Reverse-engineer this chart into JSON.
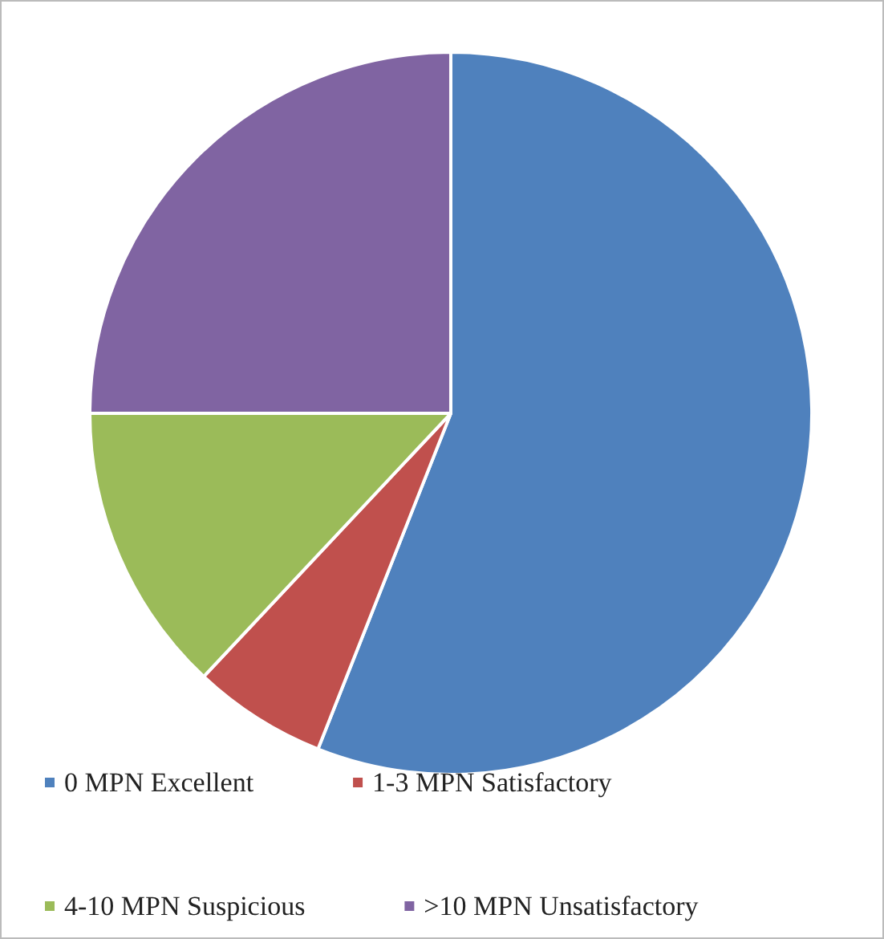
{
  "chart_data": {
    "type": "pie",
    "categories": [
      "0 MPN Excellent",
      "1-3 MPN Satisfactory",
      "4-10 MPN Suspicious",
      ">10 MPN Unsatisfactory"
    ],
    "values": [
      56,
      6,
      13,
      25
    ],
    "colors": [
      "#4f81bd",
      "#c0504d",
      "#9bbb59",
      "#8064a2"
    ],
    "legend": "bottom"
  }
}
